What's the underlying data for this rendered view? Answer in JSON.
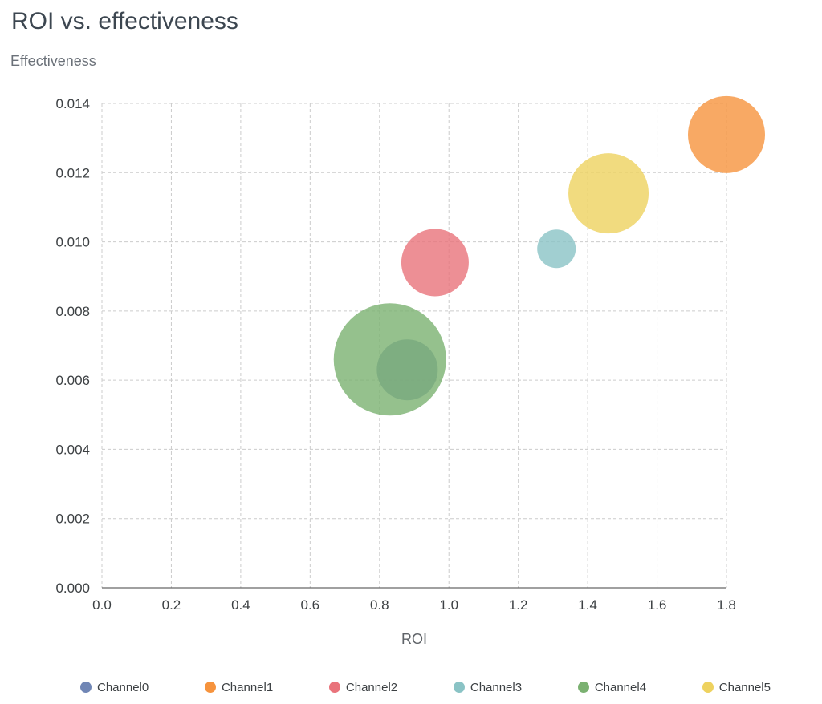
{
  "chart_data": {
    "type": "scatter",
    "subtype": "bubble",
    "title": "ROI vs. effectiveness",
    "xlabel": "ROI",
    "ylabel": "Effectiveness",
    "xlim": [
      0,
      1.8
    ],
    "ylim": [
      0,
      0.014
    ],
    "grid": true,
    "gridline_style": "dashed",
    "legend_position": "bottom",
    "bubble_opacity": 0.8,
    "x_ticks": [
      "0.0",
      "0.2",
      "0.4",
      "0.6",
      "0.8",
      "1.0",
      "1.2",
      "1.4",
      "1.6",
      "1.8"
    ],
    "y_ticks": [
      "0.000",
      "0.002",
      "0.004",
      "0.006",
      "0.008",
      "0.010",
      "0.012",
      "0.014"
    ],
    "series": [
      {
        "name": "Channel0",
        "color": "#7086b5",
        "x": 0.88,
        "y": 0.0063,
        "radius_px": 38
      },
      {
        "name": "Channel1",
        "color": "#f6933d",
        "x": 1.8,
        "y": 0.0131,
        "radius_px": 48
      },
      {
        "name": "Channel2",
        "color": "#e9737b",
        "x": 0.96,
        "y": 0.0094,
        "radius_px": 42
      },
      {
        "name": "Channel3",
        "color": "#8ac3c5",
        "x": 1.31,
        "y": 0.0098,
        "radius_px": 24
      },
      {
        "name": "Channel4",
        "color": "#7bb171",
        "x": 0.83,
        "y": 0.0066,
        "radius_px": 70
      },
      {
        "name": "Channel5",
        "color": "#eed25f",
        "x": 1.46,
        "y": 0.0114,
        "radius_px": 50
      }
    ]
  }
}
